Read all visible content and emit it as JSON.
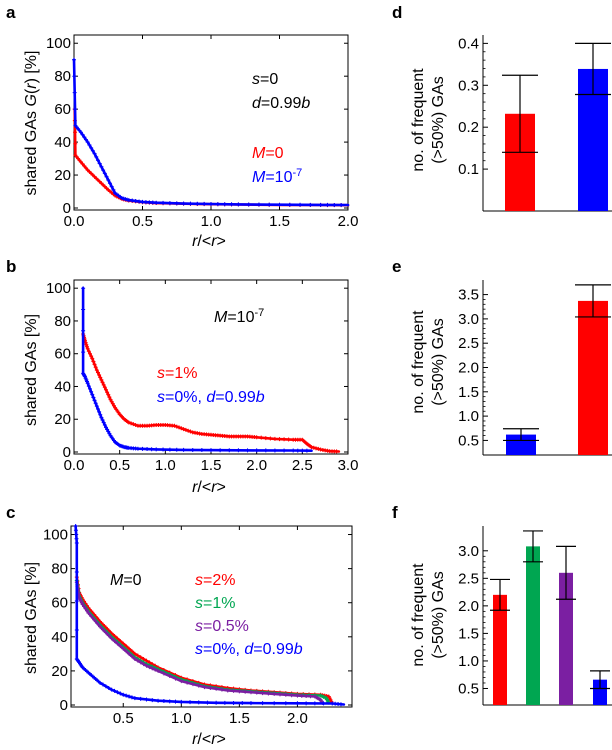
{
  "chart_data": [
    {
      "panel": "a",
      "type": "line",
      "xlabel": "r/<r>",
      "ylabel": "shared GAs G(r) [%]",
      "xlim": [
        0,
        2.0
      ],
      "ylim": [
        0,
        105
      ],
      "xticks": [
        0.0,
        0.5,
        1.0,
        1.5,
        2.0
      ],
      "xtick_labels": [
        "0.0",
        "0.5",
        "1.0",
        "1.5",
        "2.0"
      ],
      "yticks": [
        0,
        20,
        40,
        60,
        80,
        100
      ],
      "ytick_labels": [
        "0",
        "20",
        "40",
        "60",
        "80",
        "100"
      ],
      "annotations": [
        "s=0",
        "d=0.99b"
      ],
      "series": [
        {
          "name": "M=0",
          "color": "#ff0000",
          "x": [
            0.005,
            0.01,
            0.05,
            0.1,
            0.15,
            0.2,
            0.25,
            0.3,
            0.35,
            0.4,
            0.5,
            0.6,
            0.8,
            1.0,
            1.2,
            1.5,
            1.8,
            2.0
          ],
          "y": [
            60,
            32,
            28,
            23,
            19,
            15,
            11,
            7.5,
            5.5,
            4.5,
            3.5,
            3,
            2.6,
            2.3,
            2.1,
            1.9,
            1.8,
            1.7
          ]
        },
        {
          "name": "M=10-7",
          "color": "#0000ff",
          "x": [
            0.0,
            0.01,
            0.05,
            0.1,
            0.15,
            0.2,
            0.25,
            0.3,
            0.35,
            0.4,
            0.5,
            0.6,
            0.8,
            1.0,
            1.2,
            1.5,
            1.8,
            2.0
          ],
          "y": [
            90,
            50,
            46,
            40,
            33,
            25,
            17,
            9,
            6,
            4.8,
            3.7,
            3.2,
            2.7,
            2.4,
            2.2,
            2.0,
            1.9,
            1.8
          ]
        }
      ],
      "legend": [
        "M=0",
        "M=10-7"
      ]
    },
    {
      "panel": "b",
      "type": "line",
      "xlabel": "r/<r>",
      "ylabel": "shared GAs [%]",
      "xlim": [
        0,
        3.0
      ],
      "ylim": [
        0,
        105
      ],
      "xticks": [
        0.0,
        0.5,
        1.0,
        1.5,
        2.0,
        2.5,
        3.0
      ],
      "xtick_labels": [
        "0.0",
        "0.5",
        "1.0",
        "1.5",
        "2.0",
        "2.5",
        "3.0"
      ],
      "yticks": [
        0,
        20,
        40,
        60,
        80,
        100
      ],
      "ytick_labels": [
        "0",
        "20",
        "40",
        "60",
        "80",
        "100"
      ],
      "annotations": [
        "M=10-7"
      ],
      "series": [
        {
          "name": "s=1%",
          "color": "#ff0000",
          "x": [
            0.1,
            0.12,
            0.15,
            0.2,
            0.25,
            0.3,
            0.35,
            0.4,
            0.45,
            0.5,
            0.55,
            0.6,
            0.7,
            0.8,
            0.9,
            1.0,
            1.1,
            1.2,
            1.3,
            1.4,
            1.5,
            1.6,
            1.7,
            1.8,
            1.9,
            2.0,
            2.2,
            2.4,
            2.5,
            2.55,
            2.6,
            2.7,
            2.8,
            2.9
          ],
          "y": [
            72,
            68,
            63,
            57,
            50,
            44,
            38,
            32,
            27,
            23,
            20,
            18,
            16,
            16,
            16.5,
            16.5,
            16,
            14,
            12,
            11,
            10.5,
            10,
            9.5,
            9.5,
            9.5,
            9,
            8,
            7.5,
            7.5,
            5,
            3,
            1.5,
            0.5,
            0.3
          ]
        },
        {
          "name": "s=0%, d=0.99b",
          "color": "#0000ff",
          "x": [
            0.1,
            0.1,
            0.12,
            0.15,
            0.2,
            0.25,
            0.3,
            0.35,
            0.4,
            0.45,
            0.5,
            0.55,
            0.6,
            0.7,
            0.9,
            1.2,
            1.6,
            2.0,
            2.4,
            2.6
          ],
          "y": [
            100,
            48,
            46,
            42,
            35,
            28,
            21,
            15,
            10,
            6,
            4,
            3,
            2.5,
            2,
            1.6,
            1.3,
            1.1,
            1.0,
            0.9,
            0.8
          ]
        }
      ],
      "legend": [
        "s=1%",
        "s=0%, d=0.99b"
      ]
    },
    {
      "panel": "c",
      "type": "line",
      "xlabel": "r/<r>",
      "ylabel": "shared GAs [%]",
      "xlim": [
        0.05,
        2.47
      ],
      "ylim": [
        0,
        105
      ],
      "xticks": [
        0.5,
        1.0,
        1.5,
        2.0
      ],
      "xtick_labels": [
        "0.5",
        "1.0",
        "1.5",
        "2.0"
      ],
      "yticks": [
        0,
        20,
        40,
        60,
        80,
        100
      ],
      "ytick_labels": [
        "0",
        "20",
        "40",
        "60",
        "80",
        "100"
      ],
      "annotations": [
        "M=0"
      ],
      "series": [
        {
          "name": "s=2%",
          "color": "#ff0000",
          "x": [
            0.1,
            0.12,
            0.15,
            0.2,
            0.3,
            0.4,
            0.5,
            0.6,
            0.7,
            0.8,
            1.0,
            1.2,
            1.4,
            1.6,
            1.8,
            2.0,
            2.2,
            2.27,
            2.3
          ],
          "y": [
            75,
            66,
            62,
            57,
            49,
            42,
            36,
            30,
            26,
            22,
            16,
            12,
            10,
            8.5,
            7.5,
            6.5,
            6,
            5,
            1
          ]
        },
        {
          "name": "s=1%",
          "color": "#00a651",
          "x": [
            0.1,
            0.12,
            0.15,
            0.2,
            0.3,
            0.4,
            0.5,
            0.6,
            0.7,
            0.8,
            1.0,
            1.2,
            1.4,
            1.6,
            1.8,
            2.0,
            2.2,
            2.25,
            2.27
          ],
          "y": [
            73,
            64,
            60,
            55,
            47,
            40,
            34,
            28,
            24,
            21,
            15,
            11,
            9,
            8,
            7,
            6,
            5.5,
            4,
            1
          ]
        },
        {
          "name": "s=0.5%",
          "color": "#7b1fa2",
          "x": [
            0.1,
            0.12,
            0.15,
            0.2,
            0.3,
            0.4,
            0.5,
            0.6,
            0.7,
            0.8,
            1.0,
            1.2,
            1.4,
            1.6,
            1.8,
            2.0,
            2.15,
            2.2,
            2.22
          ],
          "y": [
            72,
            63,
            59,
            54,
            46,
            39,
            33,
            27,
            23,
            20,
            14,
            10.5,
            8.5,
            7.5,
            6.5,
            5.5,
            5,
            3,
            0.8
          ]
        },
        {
          "name": "s=0%, d=0.99b",
          "color": "#0000ff",
          "x": [
            0.09,
            0.1,
            0.1,
            0.12,
            0.15,
            0.2,
            0.25,
            0.3,
            0.4,
            0.5,
            0.6,
            0.8,
            1.0,
            1.3,
            1.6,
            2.0,
            2.3,
            2.4
          ],
          "y": [
            105,
            95,
            27,
            25,
            22,
            19,
            16,
            13,
            9,
            6,
            4,
            2.5,
            1.8,
            1.3,
            1.1,
            1.0,
            0.9,
            0.3
          ]
        }
      ],
      "legend": [
        "s=2%",
        "s=1%",
        "s=0.5%",
        "s=0%, d=0.99b"
      ]
    },
    {
      "panel": "d",
      "type": "bar",
      "ylabel": "no. of frequent (>50%) GAs",
      "ylim": [
        0,
        0.42
      ],
      "yticks": [
        0.1,
        0.2,
        0.3,
        0.4
      ],
      "ytick_labels": [
        "0.1",
        "0.2",
        "0.3",
        "0.4"
      ],
      "values": [
        0.232,
        0.339
      ],
      "errors": [
        0.092,
        0.061
      ],
      "colors": [
        "#ff0000",
        "#0000ff"
      ]
    },
    {
      "panel": "e",
      "type": "bar",
      "ylabel": "no. of frequent (>50%) GAs",
      "ylim": [
        0.2,
        3.8
      ],
      "yticks": [
        0.5,
        1.0,
        1.5,
        2.0,
        2.5,
        3.0,
        3.5
      ],
      "ytick_labels": [
        "0.5",
        "1.0",
        "1.5",
        "2.0",
        "2.5",
        "3.0",
        "3.5"
      ],
      "values": [
        0.62,
        3.37
      ],
      "errors": [
        0.12,
        0.33
      ],
      "colors": [
        "#0000ff",
        "#ff0000"
      ]
    },
    {
      "panel": "f",
      "type": "bar",
      "ylabel": "no. of frequent (>50%) GAs",
      "ylim": [
        0.2,
        3.45
      ],
      "yticks": [
        0.5,
        1.0,
        1.5,
        2.0,
        2.5,
        3.0
      ],
      "ytick_labels": [
        "0.5",
        "1.0",
        "1.5",
        "2.0",
        "2.5",
        "3.0"
      ],
      "values": [
        2.2,
        3.08,
        2.6,
        0.66
      ],
      "errors": [
        0.28,
        0.28,
        0.48,
        0.16
      ],
      "colors": [
        "#ff0000",
        "#00a651",
        "#7b1fa2",
        "#0000ff"
      ]
    }
  ]
}
